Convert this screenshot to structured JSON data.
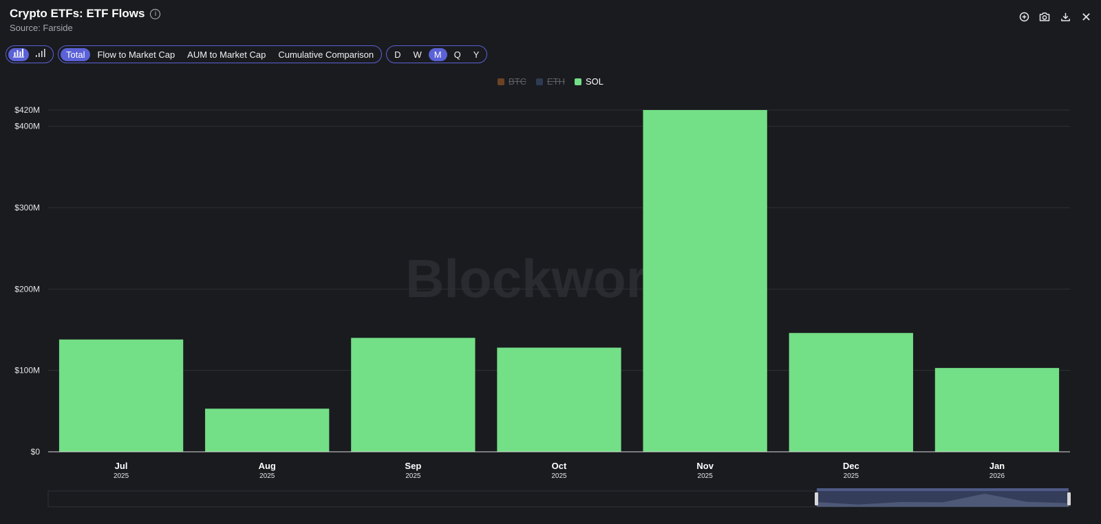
{
  "header": {
    "title": "Crypto ETFs: ETF Flows",
    "source": "Source: Farside",
    "info_glyph": "i"
  },
  "toolbar": {
    "chart_types": [
      {
        "name": "bar-chart-icon",
        "active": true
      },
      {
        "name": "signal-bars-icon",
        "active": false
      }
    ],
    "views": [
      {
        "label": "Total",
        "active": true
      },
      {
        "label": "Flow to Market Cap",
        "active": false
      },
      {
        "label": "AUM to Market Cap",
        "active": false
      },
      {
        "label": "Cumulative Comparison",
        "active": false
      }
    ],
    "intervals": [
      {
        "label": "D",
        "active": false
      },
      {
        "label": "W",
        "active": false
      },
      {
        "label": "M",
        "active": true
      },
      {
        "label": "Q",
        "active": false
      },
      {
        "label": "Y",
        "active": false
      }
    ]
  },
  "top_icons": [
    "zoom-in-icon",
    "camera-icon",
    "download-icon",
    "close-icon"
  ],
  "watermark": "Blockworks",
  "colors": {
    "background": "#1a1b1f",
    "accent": "#5b61d6",
    "sol": "#73df86",
    "btc": "#7a4a26",
    "eth": "#33415c",
    "grid": "#2e3036"
  },
  "chart_data": {
    "type": "bar",
    "title": "Crypto ETFs: ETF Flows",
    "legend": [
      {
        "name": "BTC",
        "enabled": false,
        "color": "#7a4a26"
      },
      {
        "name": "ETH",
        "enabled": false,
        "color": "#33415c"
      },
      {
        "name": "SOL",
        "enabled": true,
        "color": "#73df86"
      }
    ],
    "categories": [
      {
        "month": "Jul",
        "year": "2025"
      },
      {
        "month": "Aug",
        "year": "2025"
      },
      {
        "month": "Sep",
        "year": "2025"
      },
      {
        "month": "Oct",
        "year": "2025"
      },
      {
        "month": "Nov",
        "year": "2025"
      },
      {
        "month": "Dec",
        "year": "2025"
      },
      {
        "month": "Jan",
        "year": "2026"
      }
    ],
    "series": [
      {
        "name": "SOL",
        "values": [
          138,
          53,
          140,
          128,
          420,
          146,
          103
        ]
      }
    ],
    "unit": "USD millions",
    "ylim": [
      0,
      420
    ],
    "yticks": [
      {
        "value": 0,
        "label": "$0"
      },
      {
        "value": 100,
        "label": "$100M"
      },
      {
        "value": 200,
        "label": "$200M"
      },
      {
        "value": 300,
        "label": "$300M"
      },
      {
        "value": 400,
        "label": "$400M"
      },
      {
        "value": 420,
        "label": "$420M"
      }
    ],
    "grid": true,
    "legend_position": "top-center"
  }
}
